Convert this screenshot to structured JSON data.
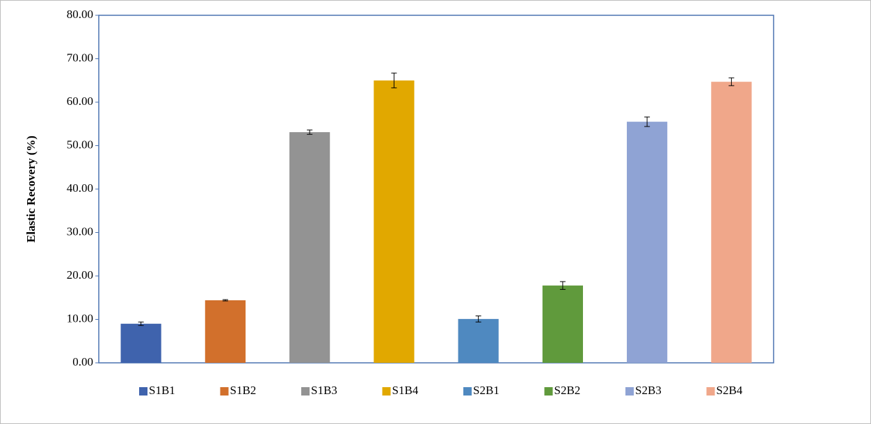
{
  "chart_data": {
    "type": "bar",
    "y_label": "Elastic Recovery (%)",
    "categories": [
      null
    ],
    "series": [
      {
        "name": "S1B1",
        "color": "#3f63ad",
        "values": [
          9.0
        ],
        "errors": [
          0.4
        ]
      },
      {
        "name": "S1B2",
        "color": "#d2702c",
        "values": [
          14.4
        ],
        "errors": [
          0.15
        ]
      },
      {
        "name": "S1B3",
        "color": "#939393",
        "values": [
          53.1
        ],
        "errors": [
          0.5
        ]
      },
      {
        "name": "S1B4",
        "color": "#e1a800",
        "values": [
          65.0
        ],
        "errors": [
          1.7
        ]
      },
      {
        "name": "S2B1",
        "color": "#4f89c0",
        "values": [
          10.1
        ],
        "errors": [
          0.7
        ]
      },
      {
        "name": "S2B2",
        "color": "#609a3c",
        "values": [
          17.8
        ],
        "errors": [
          0.9
        ]
      },
      {
        "name": "S2B3",
        "color": "#8fa3d4",
        "values": [
          55.5
        ],
        "errors": [
          1.1
        ]
      },
      {
        "name": "S2B4",
        "color": "#f0a78a",
        "values": [
          64.7
        ],
        "errors": [
          0.9
        ]
      }
    ],
    "ylim": [
      0,
      80
    ],
    "yticks": [
      {
        "value": 0,
        "label": "0.00"
      },
      {
        "value": 10,
        "label": "10.00"
      },
      {
        "value": 20,
        "label": "20.00"
      },
      {
        "value": 30,
        "label": "30.00"
      },
      {
        "value": 40,
        "label": "40.00"
      },
      {
        "value": 50,
        "label": "50.00"
      },
      {
        "value": 60,
        "label": "60.00"
      },
      {
        "value": 70,
        "label": "70.00"
      },
      {
        "value": 80,
        "label": "80.00"
      }
    ],
    "legend": "bottom"
  }
}
